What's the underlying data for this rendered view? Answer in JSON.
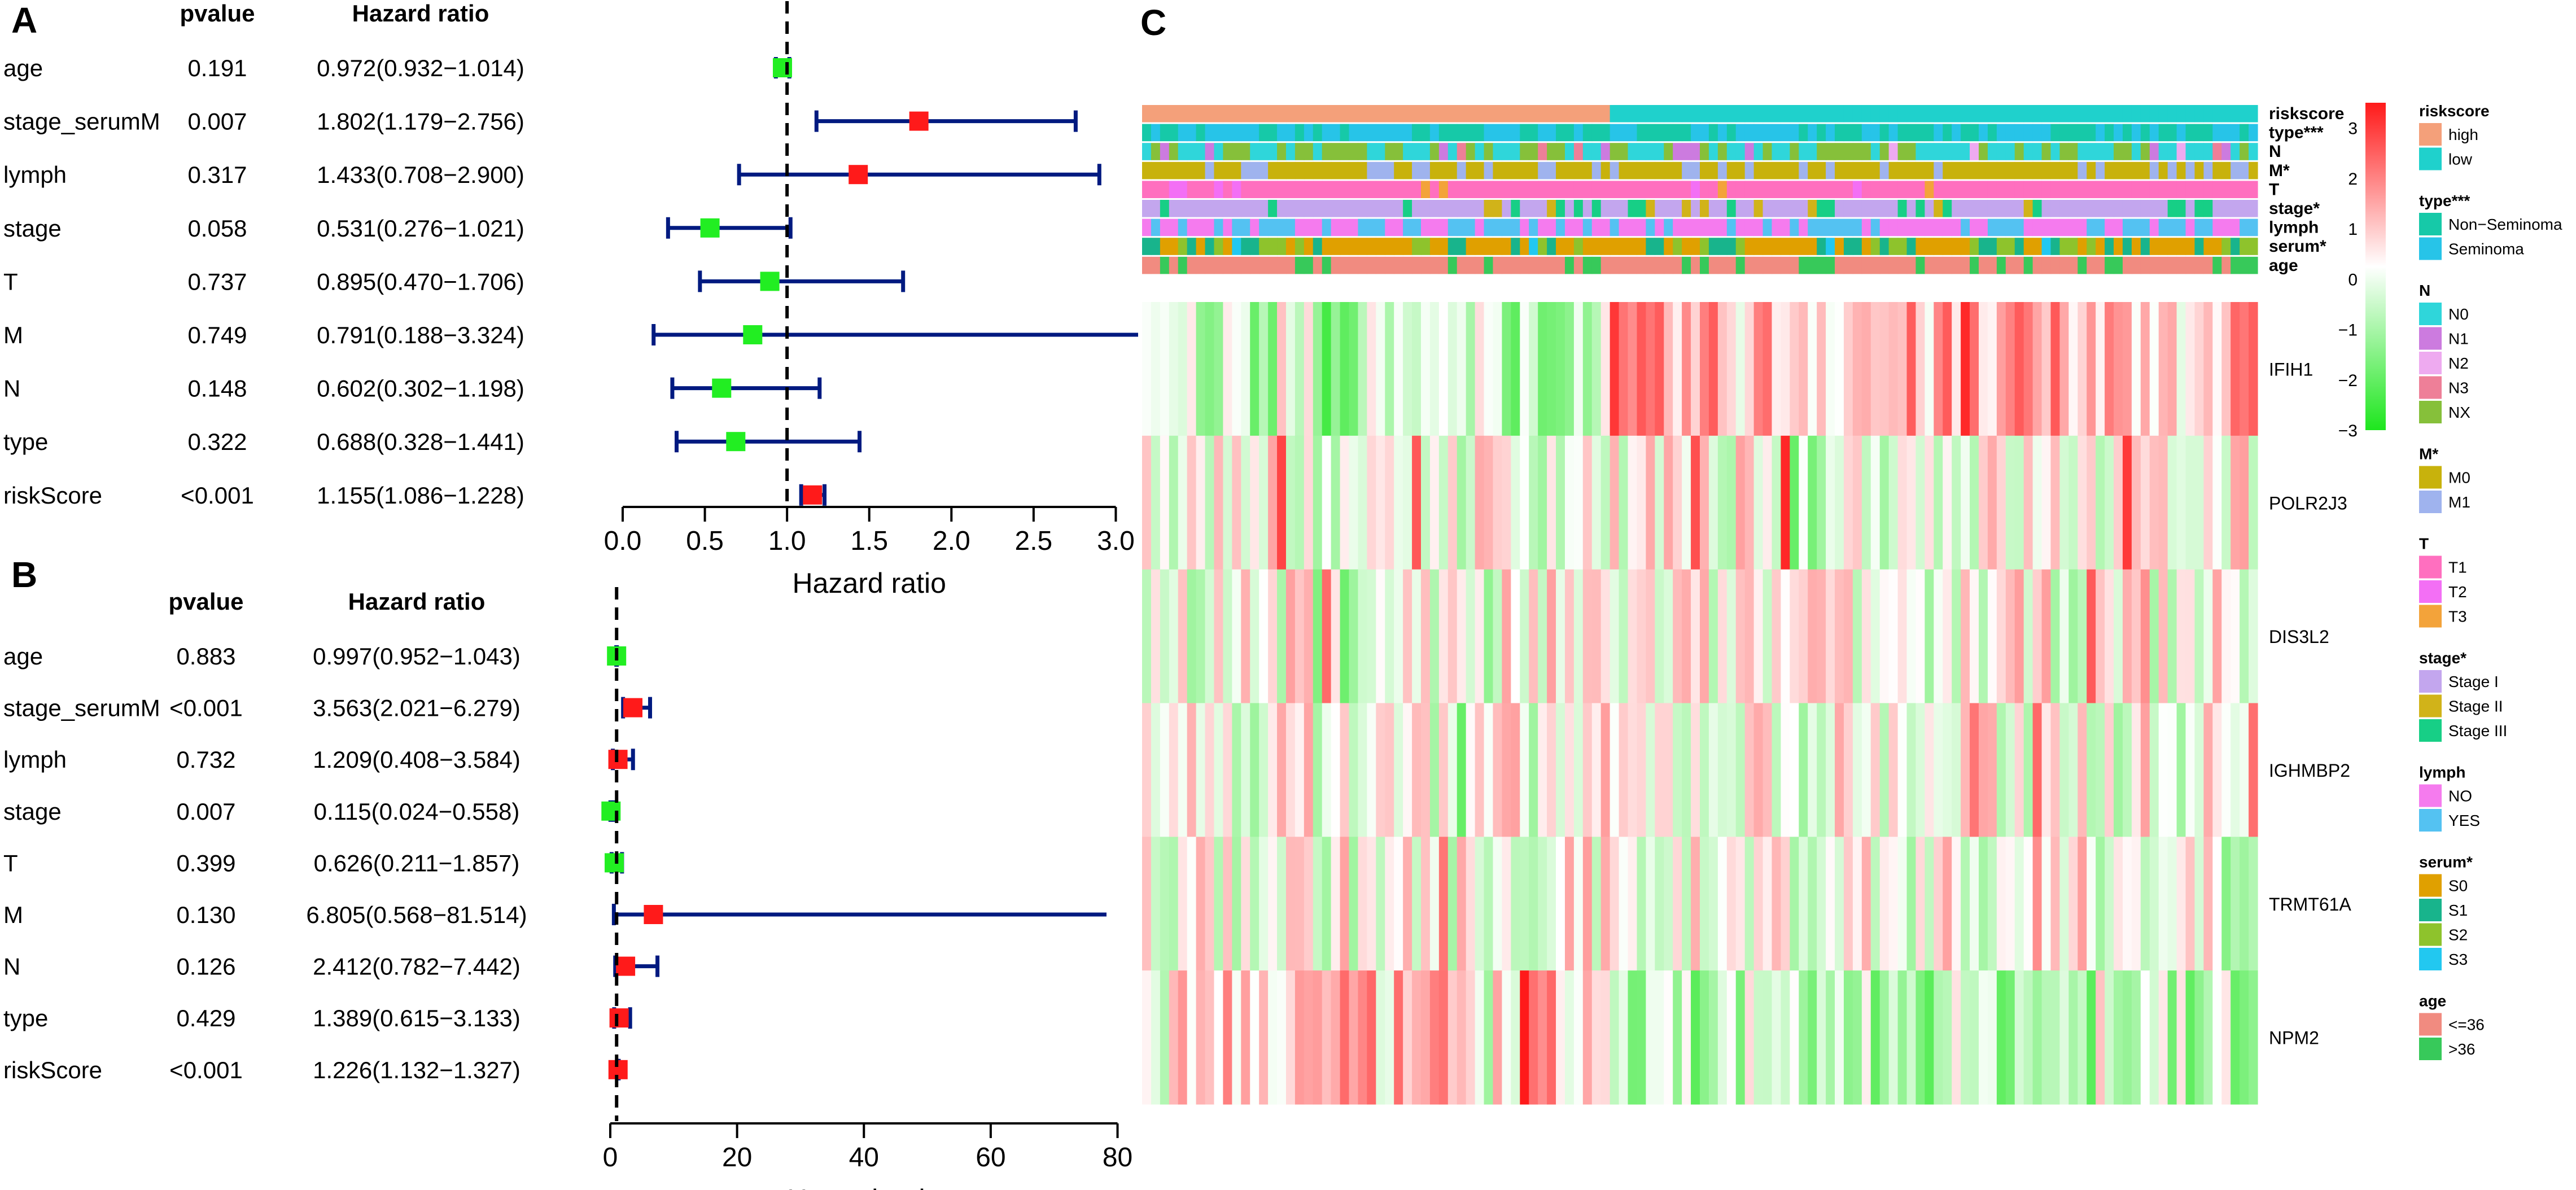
{
  "panels": {
    "A": "A",
    "B": "B",
    "C": "C"
  },
  "chart_data": [
    {
      "id": "forest-A",
      "type": "forest",
      "header_pvalue": "pvalue",
      "header_hr": "Hazard ratio",
      "xlabel": "Hazard ratio",
      "xlim": [
        0,
        3.3
      ],
      "ticks": [
        "0.0",
        "0.5",
        "1.0",
        "1.5",
        "2.0",
        "2.5",
        "3.0"
      ],
      "reference_line": 1,
      "rows": [
        {
          "label": "age",
          "pvalue": "0.191",
          "hr_text": "0.972(0.932−1.014)",
          "hr": 0.972,
          "lo": 0.932,
          "hi": 1.014
        },
        {
          "label": "stage_serumM",
          "pvalue": "0.007",
          "hr_text": "1.802(1.179−2.756)",
          "hr": 1.802,
          "lo": 1.179,
          "hi": 2.756
        },
        {
          "label": "lymph",
          "pvalue": "0.317",
          "hr_text": "1.433(0.708−2.900)",
          "hr": 1.433,
          "lo": 0.708,
          "hi": 2.9
        },
        {
          "label": "stage",
          "pvalue": "0.058",
          "hr_text": "0.531(0.276−1.021)",
          "hr": 0.531,
          "lo": 0.276,
          "hi": 1.021
        },
        {
          "label": "T",
          "pvalue": "0.737",
          "hr_text": "0.895(0.470−1.706)",
          "hr": 0.895,
          "lo": 0.47,
          "hi": 1.706
        },
        {
          "label": "M",
          "pvalue": "0.749",
          "hr_text": "0.791(0.188−3.324)",
          "hr": 0.791,
          "lo": 0.188,
          "hi": 3.324
        },
        {
          "label": "N",
          "pvalue": "0.148",
          "hr_text": "0.602(0.302−1.198)",
          "hr": 0.602,
          "lo": 0.302,
          "hi": 1.198
        },
        {
          "label": "type",
          "pvalue": "0.322",
          "hr_text": "0.688(0.328−1.441)",
          "hr": 0.688,
          "lo": 0.328,
          "hi": 1.441
        },
        {
          "label": "riskScore",
          "pvalue": "<0.001",
          "hr_text": "1.155(1.086−1.228)",
          "hr": 1.155,
          "lo": 1.086,
          "hi": 1.228
        }
      ]
    },
    {
      "id": "forest-B",
      "type": "forest",
      "header_pvalue": "pvalue",
      "header_hr": "Hazard ratio",
      "xlabel": "Hazard ratio",
      "xlim": [
        0,
        82
      ],
      "ticks": [
        "0",
        "20",
        "40",
        "60",
        "80"
      ],
      "reference_line": 1,
      "rows": [
        {
          "label": "age",
          "pvalue": "0.883",
          "hr_text": "0.997(0.952−1.043)",
          "hr": 0.997,
          "lo": 0.952,
          "hi": 1.043
        },
        {
          "label": "stage_serumM",
          "pvalue": "<0.001",
          "hr_text": "3.563(2.021−6.279)",
          "hr": 3.563,
          "lo": 2.021,
          "hi": 6.279
        },
        {
          "label": "lymph",
          "pvalue": "0.732",
          "hr_text": "1.209(0.408−3.584)",
          "hr": 1.209,
          "lo": 0.408,
          "hi": 3.584
        },
        {
          "label": "stage",
          "pvalue": "0.007",
          "hr_text": "0.115(0.024−0.558)",
          "hr": 0.115,
          "lo": 0.024,
          "hi": 0.558
        },
        {
          "label": "T",
          "pvalue": "0.399",
          "hr_text": "0.626(0.211−1.857)",
          "hr": 0.626,
          "lo": 0.211,
          "hi": 1.857
        },
        {
          "label": "M",
          "pvalue": "0.130",
          "hr_text": "6.805(0.568−81.514)",
          "hr": 6.805,
          "lo": 0.568,
          "hi": 81.514
        },
        {
          "label": "N",
          "pvalue": "0.126",
          "hr_text": "2.412(0.782−7.442)",
          "hr": 2.412,
          "lo": 0.782,
          "hi": 7.442
        },
        {
          "label": "type",
          "pvalue": "0.429",
          "hr_text": "1.389(0.615−3.133)",
          "hr": 1.389,
          "lo": 0.615,
          "hi": 3.133
        },
        {
          "label": "riskScore",
          "pvalue": "<0.001",
          "hr_text": "1.226(1.132−1.327)",
          "hr": 1.226,
          "lo": 1.132,
          "hi": 1.327
        }
      ]
    },
    {
      "id": "heatmap-C",
      "type": "heatmap",
      "samples": 124,
      "high_count": 52,
      "seed": 7,
      "genes": [
        "IFIH1",
        "POLR2J3",
        "DIS3L2",
        "IGHMBP2",
        "TRMT61A",
        "NPM2"
      ],
      "gene_trend": [
        1,
        0,
        0,
        0,
        0,
        -1
      ],
      "annotation_tracks": [
        "riskscore",
        "type***",
        "N",
        "M*",
        "T",
        "stage*",
        "lymph",
        "serum*",
        "age"
      ],
      "color_scale": {
        "ticks": [
          "3",
          "2",
          "1",
          "0",
          "−1",
          "−2",
          "−3"
        ],
        "min": -3,
        "max": 3.5,
        "high": "#ff1a1a",
        "mid": "#ffffff",
        "low": "#1ee61e"
      },
      "legend": [
        {
          "title": "riskscore",
          "items": [
            {
              "label": "high",
              "color": "#f4a07a"
            },
            {
              "label": "low",
              "color": "#1fd1cc"
            }
          ]
        },
        {
          "title": "type***",
          "items": [
            {
              "label": "Non−Seminoma",
              "color": "#16c9a8"
            },
            {
              "label": "Seminoma",
              "color": "#27c4e8"
            }
          ]
        },
        {
          "title": "N",
          "items": [
            {
              "label": "N0",
              "color": "#2fd6da"
            },
            {
              "label": "N1",
              "color": "#cc7bdf"
            },
            {
              "label": "N2",
              "color": "#eeaaf0"
            },
            {
              "label": "N3",
              "color": "#ee7f98"
            },
            {
              "label": "NX",
              "color": "#86c03a"
            }
          ]
        },
        {
          "title": "M*",
          "items": [
            {
              "label": "M0",
              "color": "#c8b20c"
            },
            {
              "label": "M1",
              "color": "#9fb3ee"
            }
          ]
        },
        {
          "title": "T",
          "items": [
            {
              "label": "T1",
              "color": "#ff6fbf"
            },
            {
              "label": "T2",
              "color": "#f36ff5"
            },
            {
              "label": "T3",
              "color": "#f3a33a"
            }
          ]
        },
        {
          "title": "stage*",
          "items": [
            {
              "label": "Stage I",
              "color": "#c3a6ee"
            },
            {
              "label": "Stage II",
              "color": "#d1b319"
            },
            {
              "label": "Stage III",
              "color": "#17cf86"
            }
          ]
        },
        {
          "title": "lymph",
          "items": [
            {
              "label": "NO",
              "color": "#f57bee"
            },
            {
              "label": "YES",
              "color": "#54c2f2"
            }
          ]
        },
        {
          "title": "serum*",
          "items": [
            {
              "label": "S0",
              "color": "#e0a000"
            },
            {
              "label": "S1",
              "color": "#18b48c"
            },
            {
              "label": "S2",
              "color": "#8ec32c"
            },
            {
              "label": "S3",
              "color": "#22c8f0"
            }
          ]
        },
        {
          "title": "age",
          "items": [
            {
              "label": "<=36",
              "color": "#f18b80"
            },
            {
              "label": ">36",
              "color": "#37c95a"
            }
          ]
        }
      ]
    }
  ]
}
